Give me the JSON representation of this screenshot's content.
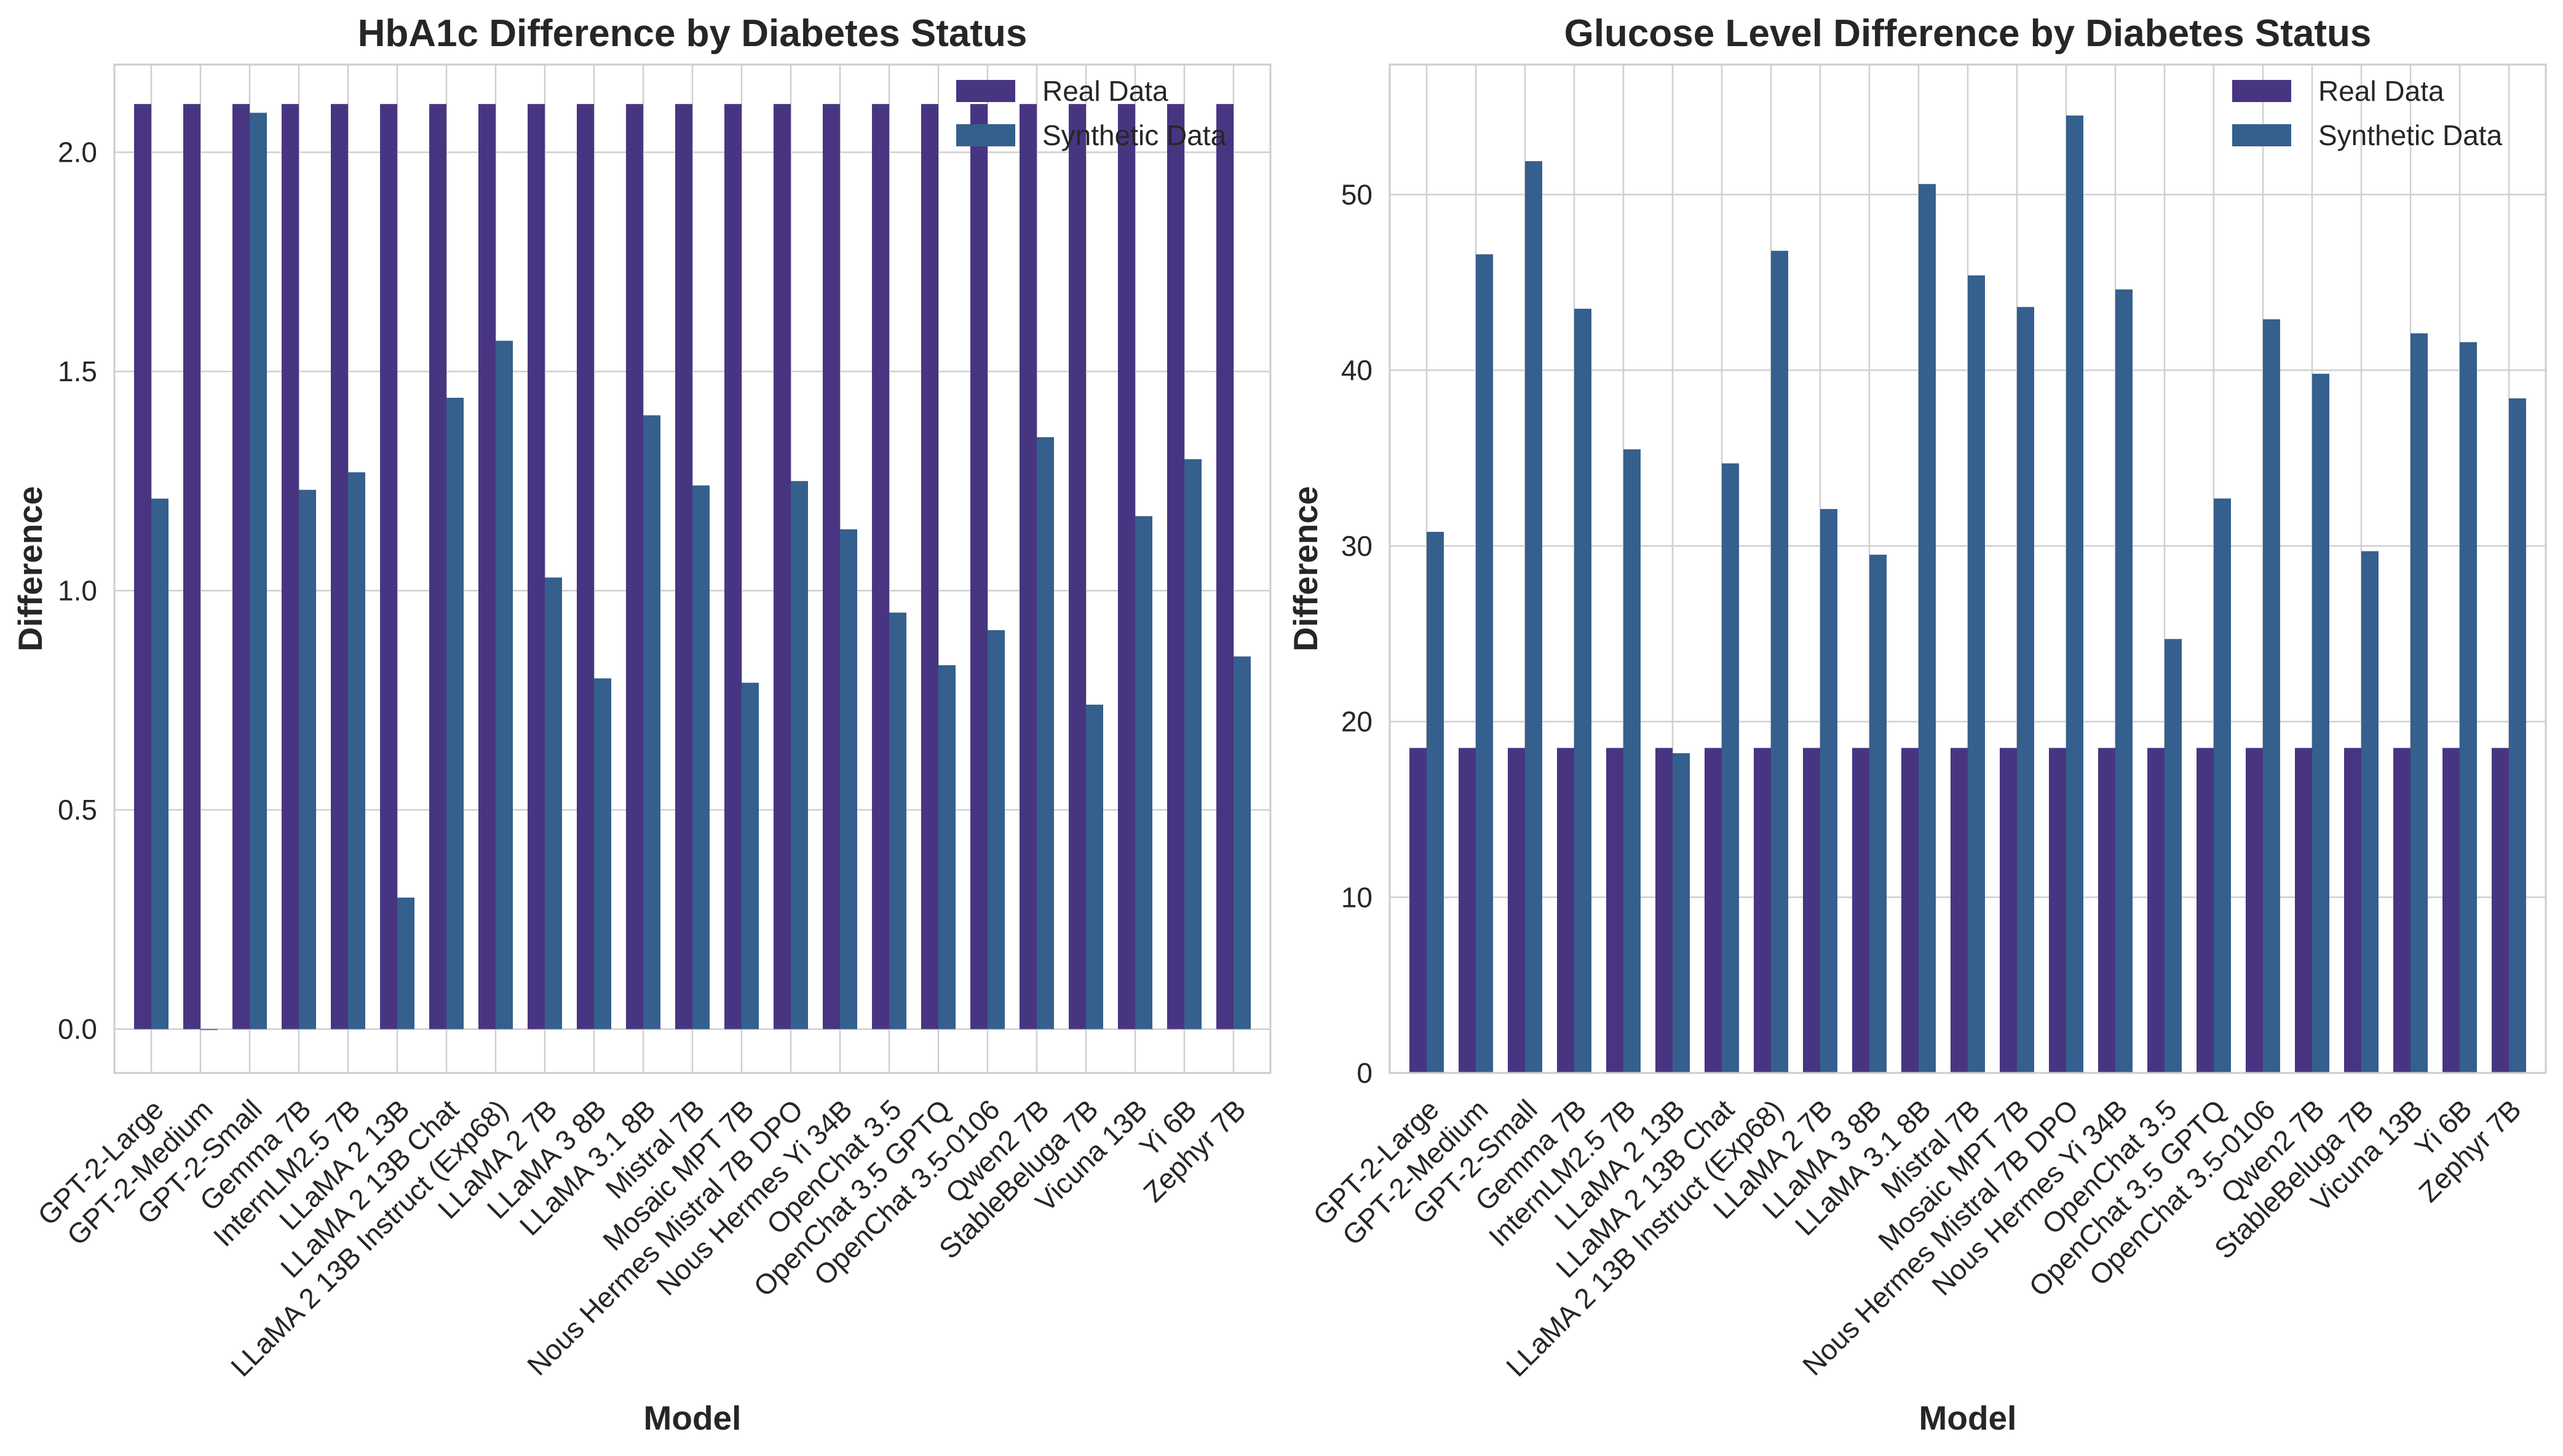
{
  "colors": {
    "real": "#483582",
    "synthetic": "#355f8d",
    "grid": "#cfcfcf",
    "spine": "#cccccc",
    "text": "#262626"
  },
  "chart_data": [
    {
      "type": "bar",
      "title": "HbA1c Difference by Diabetes Status",
      "xlabel": "Model",
      "ylabel": "Difference",
      "ylim": [
        -0.1,
        2.2
      ],
      "yticks": [
        "0.0",
        "0.5",
        "1.0",
        "1.5",
        "2.0"
      ],
      "grid": true,
      "legend": "top-right",
      "categories": [
        "GPT-2-Large",
        "GPT-2-Medium",
        "GPT-2-Small",
        "Gemma 7B",
        "InternLM2.5 7B",
        "LLaMA 2 13B",
        "LLaMA 2 13B Chat",
        "LLaMA 2 13B Instruct (Exp68)",
        "LLaMA 2 7B",
        "LLaMA 3 8B",
        "LLaMA 3.1 8B",
        "Mistral 7B",
        "Mosaic MPT 7B",
        "Nous Hermes Mistral 7B DPO",
        "Nous Hermes Yi 34B",
        "OpenChat 3.5",
        "OpenChat 3.5 GPTQ",
        "OpenChat 3.5-0106",
        "Qwen2 7B",
        "StableBeluga 7B",
        "Vicuna 13B",
        "Yi 6B",
        "Zephyr 7B"
      ],
      "series": [
        {
          "name": "Real Data",
          "values": [
            2.11,
            2.11,
            2.11,
            2.11,
            2.11,
            2.11,
            2.11,
            2.11,
            2.11,
            2.11,
            2.11,
            2.11,
            2.11,
            2.11,
            2.11,
            2.11,
            2.11,
            2.11,
            2.11,
            2.11,
            2.11,
            2.11,
            2.11
          ]
        },
        {
          "name": "Synthetic Data",
          "values": [
            1.21,
            0.0,
            2.09,
            1.23,
            1.27,
            0.3,
            1.44,
            1.57,
            1.03,
            0.8,
            1.4,
            1.24,
            0.79,
            1.25,
            1.14,
            0.95,
            0.83,
            0.91,
            1.35,
            0.74,
            1.17,
            1.3,
            0.85
          ]
        }
      ]
    },
    {
      "type": "bar",
      "title": "Glucose Level Difference by Diabetes Status",
      "xlabel": "Model",
      "ylabel": "Difference",
      "ylim": [
        0,
        57.4
      ],
      "yticks": [
        "0",
        "10",
        "20",
        "30",
        "40",
        "50"
      ],
      "grid": true,
      "legend": "top-right",
      "categories": [
        "GPT-2-Large",
        "GPT-2-Medium",
        "GPT-2-Small",
        "Gemma 7B",
        "InternLM2.5 7B",
        "LLaMA 2 13B",
        "LLaMA 2 13B Chat",
        "LLaMA 2 13B Instruct (Exp68)",
        "LLaMA 2 7B",
        "LLaMA 3 8B",
        "LLaMA 3.1 8B",
        "Mistral 7B",
        "Mosaic MPT 7B",
        "Nous Hermes Mistral 7B DPO",
        "Nous Hermes Yi 34B",
        "OpenChat 3.5",
        "OpenChat 3.5 GPTQ",
        "OpenChat 3.5-0106",
        "Qwen2 7B",
        "StableBeluga 7B",
        "Vicuna 13B",
        "Yi 6B",
        "Zephyr 7B"
      ],
      "series": [
        {
          "name": "Real Data",
          "values": [
            18.5,
            18.5,
            18.5,
            18.5,
            18.5,
            18.5,
            18.5,
            18.5,
            18.5,
            18.5,
            18.5,
            18.5,
            18.5,
            18.5,
            18.5,
            18.5,
            18.5,
            18.5,
            18.5,
            18.5,
            18.5,
            18.5,
            18.5
          ]
        },
        {
          "name": "Synthetic Data",
          "values": [
            30.8,
            46.6,
            51.9,
            43.5,
            35.5,
            18.2,
            34.7,
            46.8,
            32.1,
            29.5,
            50.6,
            45.4,
            43.6,
            54.5,
            44.6,
            24.7,
            32.7,
            42.9,
            39.8,
            29.7,
            42.1,
            41.6,
            38.4
          ]
        }
      ]
    }
  ]
}
